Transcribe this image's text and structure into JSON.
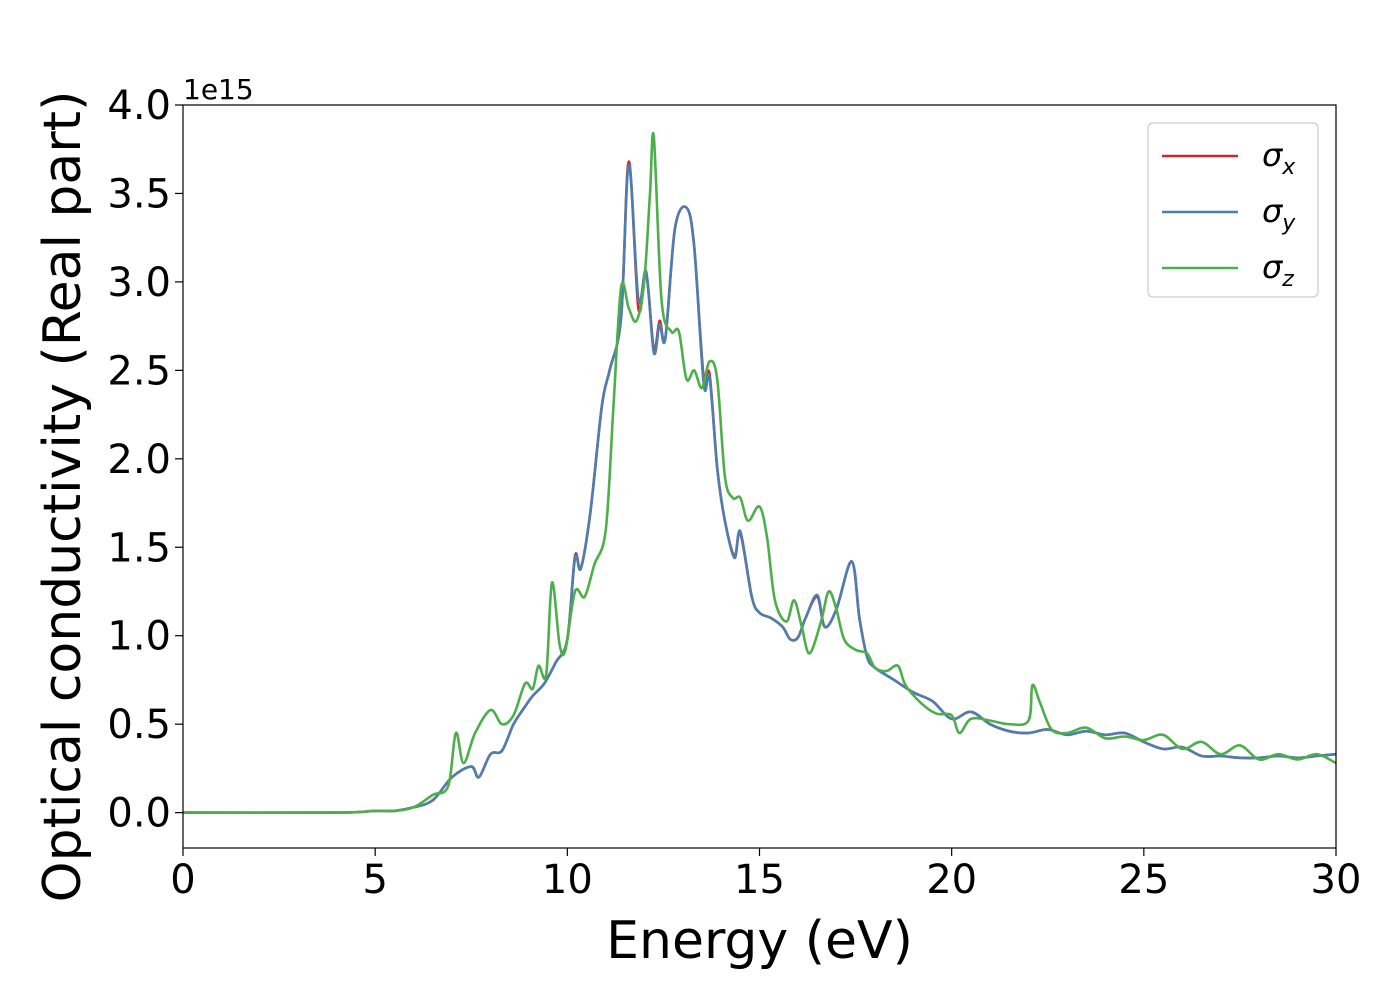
{
  "chart_data": {
    "type": "line",
    "title": "",
    "xlabel": "Energy (eV)",
    "ylabel": "Optical conductivity (Real part)",
    "y_offset_label": "1e15",
    "xlim": [
      0,
      30
    ],
    "ylim": [
      -0.2,
      4.0
    ],
    "x_ticks": [
      0,
      5,
      10,
      15,
      20,
      25,
      30
    ],
    "x_tick_labels": [
      "0",
      "5",
      "10",
      "15",
      "20",
      "25",
      "30"
    ],
    "y_ticks": [
      0.0,
      0.5,
      1.0,
      1.5,
      2.0,
      2.5,
      3.0,
      3.5,
      4.0
    ],
    "y_tick_labels": [
      "0.0",
      "0.5",
      "1.0",
      "1.5",
      "2.0",
      "2.5",
      "3.0",
      "3.5",
      "4.0"
    ],
    "grid": false,
    "legend_position": "top-right",
    "series": [
      {
        "name": "σx",
        "symbol": "σ",
        "subscript": "x",
        "color": "#d62728",
        "points": [
          [
            0,
            0
          ],
          [
            4,
            0
          ],
          [
            5,
            0.01
          ],
          [
            5.5,
            0.01
          ],
          [
            6,
            0.03
          ],
          [
            6.5,
            0.07
          ],
          [
            7,
            0.2
          ],
          [
            7.5,
            0.26
          ],
          [
            7.7,
            0.2
          ],
          [
            8,
            0.33
          ],
          [
            8.3,
            0.35
          ],
          [
            8.6,
            0.5
          ],
          [
            8.9,
            0.6
          ],
          [
            9.1,
            0.66
          ],
          [
            9.4,
            0.73
          ],
          [
            9.7,
            0.85
          ],
          [
            10.0,
            0.98
          ],
          [
            10.2,
            1.45
          ],
          [
            10.35,
            1.38
          ],
          [
            10.6,
            1.7
          ],
          [
            10.9,
            2.3
          ],
          [
            11.1,
            2.5
          ],
          [
            11.4,
            2.8
          ],
          [
            11.6,
            3.68
          ],
          [
            11.85,
            2.85
          ],
          [
            12.05,
            3.05
          ],
          [
            12.25,
            2.62
          ],
          [
            12.4,
            2.78
          ],
          [
            12.55,
            2.68
          ],
          [
            12.8,
            3.3
          ],
          [
            13.1,
            3.42
          ],
          [
            13.3,
            3.2
          ],
          [
            13.55,
            2.45
          ],
          [
            13.7,
            2.48
          ],
          [
            13.9,
            1.95
          ],
          [
            14.1,
            1.65
          ],
          [
            14.35,
            1.45
          ],
          [
            14.5,
            1.58
          ],
          [
            14.8,
            1.22
          ],
          [
            15.0,
            1.13
          ],
          [
            15.3,
            1.1
          ],
          [
            15.6,
            1.05
          ],
          [
            15.8,
            0.98
          ],
          [
            16.0,
            0.99
          ],
          [
            16.2,
            1.1
          ],
          [
            16.5,
            1.22
          ],
          [
            16.7,
            1.05
          ],
          [
            17.0,
            1.15
          ],
          [
            17.4,
            1.42
          ],
          [
            17.6,
            1.1
          ],
          [
            17.8,
            0.88
          ],
          [
            18.0,
            0.82
          ],
          [
            18.5,
            0.75
          ],
          [
            19.0,
            0.68
          ],
          [
            19.5,
            0.63
          ],
          [
            20.0,
            0.53
          ],
          [
            20.5,
            0.57
          ],
          [
            21.0,
            0.5
          ],
          [
            21.5,
            0.46
          ],
          [
            22.0,
            0.45
          ],
          [
            22.5,
            0.47
          ],
          [
            23.0,
            0.44
          ],
          [
            23.5,
            0.46
          ],
          [
            24.0,
            0.44
          ],
          [
            24.5,
            0.45
          ],
          [
            25.0,
            0.4
          ],
          [
            25.5,
            0.36
          ],
          [
            26.0,
            0.37
          ],
          [
            26.5,
            0.32
          ],
          [
            27.0,
            0.32
          ],
          [
            27.5,
            0.31
          ],
          [
            28.0,
            0.31
          ],
          [
            28.5,
            0.32
          ],
          [
            29.0,
            0.31
          ],
          [
            29.5,
            0.32
          ],
          [
            30.0,
            0.33
          ]
        ]
      },
      {
        "name": "σy",
        "symbol": "σ",
        "subscript": "y",
        "color": "#4c7fb0",
        "points": [
          [
            0,
            0
          ],
          [
            4,
            0
          ],
          [
            5,
            0.01
          ],
          [
            5.5,
            0.01
          ],
          [
            6,
            0.03
          ],
          [
            6.5,
            0.07
          ],
          [
            7,
            0.2
          ],
          [
            7.5,
            0.26
          ],
          [
            7.7,
            0.2
          ],
          [
            8,
            0.33
          ],
          [
            8.3,
            0.35
          ],
          [
            8.6,
            0.5
          ],
          [
            8.9,
            0.6
          ],
          [
            9.1,
            0.66
          ],
          [
            9.4,
            0.73
          ],
          [
            9.7,
            0.85
          ],
          [
            10.0,
            0.98
          ],
          [
            10.2,
            1.44
          ],
          [
            10.35,
            1.38
          ],
          [
            10.6,
            1.7
          ],
          [
            10.9,
            2.3
          ],
          [
            11.1,
            2.5
          ],
          [
            11.4,
            2.8
          ],
          [
            11.6,
            3.66
          ],
          [
            11.85,
            2.9
          ],
          [
            12.05,
            3.06
          ],
          [
            12.25,
            2.6
          ],
          [
            12.4,
            2.76
          ],
          [
            12.55,
            2.68
          ],
          [
            12.8,
            3.3
          ],
          [
            13.1,
            3.42
          ],
          [
            13.3,
            3.2
          ],
          [
            13.55,
            2.42
          ],
          [
            13.7,
            2.46
          ],
          [
            13.9,
            1.95
          ],
          [
            14.1,
            1.65
          ],
          [
            14.35,
            1.44
          ],
          [
            14.5,
            1.59
          ],
          [
            14.8,
            1.22
          ],
          [
            15.0,
            1.13
          ],
          [
            15.3,
            1.1
          ],
          [
            15.6,
            1.05
          ],
          [
            15.8,
            0.98
          ],
          [
            16.0,
            0.99
          ],
          [
            16.2,
            1.1
          ],
          [
            16.5,
            1.23
          ],
          [
            16.7,
            1.05
          ],
          [
            17.0,
            1.15
          ],
          [
            17.4,
            1.42
          ],
          [
            17.6,
            1.1
          ],
          [
            17.8,
            0.88
          ],
          [
            18.0,
            0.82
          ],
          [
            18.5,
            0.75
          ],
          [
            19.0,
            0.68
          ],
          [
            19.5,
            0.63
          ],
          [
            20.0,
            0.53
          ],
          [
            20.5,
            0.57
          ],
          [
            21.0,
            0.5
          ],
          [
            21.5,
            0.46
          ],
          [
            22.0,
            0.45
          ],
          [
            22.5,
            0.47
          ],
          [
            23.0,
            0.44
          ],
          [
            23.5,
            0.46
          ],
          [
            24.0,
            0.44
          ],
          [
            24.5,
            0.45
          ],
          [
            25.0,
            0.4
          ],
          [
            25.5,
            0.36
          ],
          [
            26.0,
            0.37
          ],
          [
            26.5,
            0.32
          ],
          [
            27.0,
            0.32
          ],
          [
            27.5,
            0.31
          ],
          [
            28.0,
            0.31
          ],
          [
            28.5,
            0.32
          ],
          [
            29.0,
            0.31
          ],
          [
            29.5,
            0.32
          ],
          [
            30.0,
            0.33
          ]
        ]
      },
      {
        "name": "σz",
        "symbol": "σ",
        "subscript": "z",
        "color": "#4daf4a",
        "points": [
          [
            0,
            0
          ],
          [
            4,
            0
          ],
          [
            5,
            0.01
          ],
          [
            5.5,
            0.01
          ],
          [
            6,
            0.03
          ],
          [
            6.5,
            0.1
          ],
          [
            6.9,
            0.15
          ],
          [
            7.1,
            0.45
          ],
          [
            7.3,
            0.28
          ],
          [
            7.6,
            0.45
          ],
          [
            8.0,
            0.58
          ],
          [
            8.3,
            0.5
          ],
          [
            8.6,
            0.55
          ],
          [
            8.9,
            0.73
          ],
          [
            9.1,
            0.7
          ],
          [
            9.25,
            0.83
          ],
          [
            9.45,
            0.78
          ],
          [
            9.6,
            1.3
          ],
          [
            9.8,
            0.95
          ],
          [
            9.95,
            0.92
          ],
          [
            10.2,
            1.25
          ],
          [
            10.45,
            1.22
          ],
          [
            10.7,
            1.4
          ],
          [
            11.0,
            1.6
          ],
          [
            11.2,
            2.3
          ],
          [
            11.4,
            2.97
          ],
          [
            11.6,
            2.85
          ],
          [
            11.8,
            2.78
          ],
          [
            12.0,
            3.0
          ],
          [
            12.15,
            3.5
          ],
          [
            12.25,
            3.82
          ],
          [
            12.45,
            2.9
          ],
          [
            12.7,
            2.72
          ],
          [
            12.9,
            2.72
          ],
          [
            13.1,
            2.45
          ],
          [
            13.3,
            2.5
          ],
          [
            13.5,
            2.4
          ],
          [
            13.7,
            2.55
          ],
          [
            13.9,
            2.45
          ],
          [
            14.1,
            1.9
          ],
          [
            14.3,
            1.78
          ],
          [
            14.5,
            1.78
          ],
          [
            14.7,
            1.65
          ],
          [
            15.0,
            1.73
          ],
          [
            15.2,
            1.55
          ],
          [
            15.4,
            1.2
          ],
          [
            15.7,
            1.08
          ],
          [
            15.9,
            1.2
          ],
          [
            16.1,
            1.05
          ],
          [
            16.3,
            0.9
          ],
          [
            16.6,
            1.08
          ],
          [
            16.8,
            1.25
          ],
          [
            17.0,
            1.15
          ],
          [
            17.2,
            0.98
          ],
          [
            17.5,
            0.92
          ],
          [
            17.8,
            0.9
          ],
          [
            18.0,
            0.82
          ],
          [
            18.3,
            0.8
          ],
          [
            18.6,
            0.83
          ],
          [
            18.8,
            0.72
          ],
          [
            19.2,
            0.62
          ],
          [
            19.6,
            0.56
          ],
          [
            20.0,
            0.55
          ],
          [
            20.2,
            0.45
          ],
          [
            20.5,
            0.53
          ],
          [
            21.0,
            0.52
          ],
          [
            21.5,
            0.5
          ],
          [
            22.0,
            0.52
          ],
          [
            22.1,
            0.72
          ],
          [
            22.3,
            0.62
          ],
          [
            22.6,
            0.47
          ],
          [
            23.0,
            0.45
          ],
          [
            23.5,
            0.48
          ],
          [
            24.0,
            0.42
          ],
          [
            24.5,
            0.43
          ],
          [
            25.0,
            0.41
          ],
          [
            25.5,
            0.44
          ],
          [
            26.0,
            0.36
          ],
          [
            26.5,
            0.4
          ],
          [
            27.0,
            0.33
          ],
          [
            27.5,
            0.38
          ],
          [
            28.0,
            0.3
          ],
          [
            28.5,
            0.33
          ],
          [
            29.0,
            0.3
          ],
          [
            29.5,
            0.33
          ],
          [
            30.0,
            0.28
          ]
        ]
      }
    ]
  }
}
